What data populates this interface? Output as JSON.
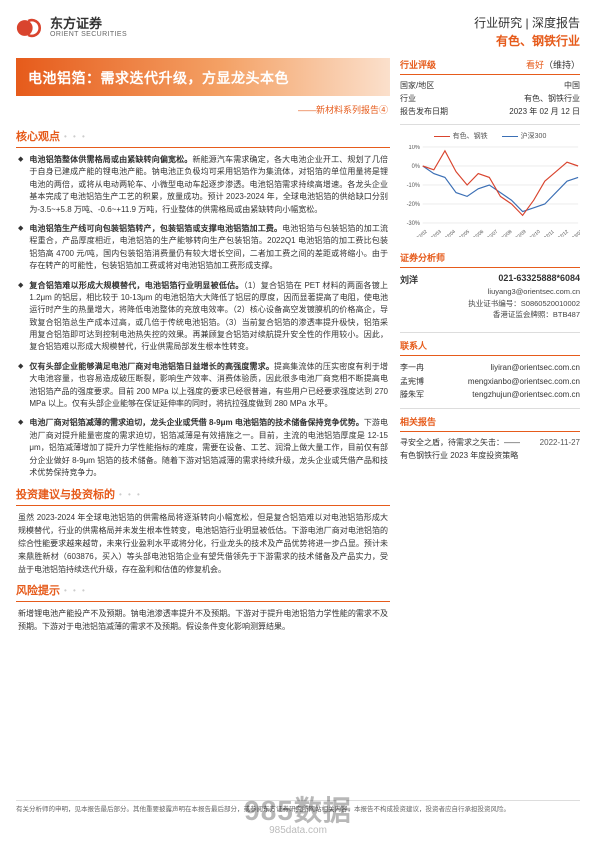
{
  "brand": {
    "cn": "东方证券",
    "en": "ORIENT SECURITIES"
  },
  "header": {
    "line1_a": "行业研究",
    "line1_sep": " | ",
    "line1_b": "深度报告",
    "line2": "有色、钢铁行业"
  },
  "title": {
    "main": "电池铝箔：需求迭代升级，方显龙头本色",
    "sub": "——新材料系列报告④"
  },
  "sections": {
    "core": "核心观点",
    "advice": "投资建议与投资标的",
    "risk": "风险提示"
  },
  "core_bullets": [
    {
      "lead": "电池铝箔整体供需格局或由紧缺转向偏宽松。",
      "body": "新能源汽车需求确定，各大电池企业开工、规划了几倍于自身已建成产能的锂电池产能。钠电池正负极均可采用铝箔作为集流体，对铝箔的单位用量将是锂电池的两倍，或将从电动两轮车、小微型电动车起逐步渗透。电池铝箔需求持续高增速。各龙头企业基本完成了电池铝箔生产工艺的积累，放量成功。预计 2023-2024 年，全球电池铝箔的供给缺口分别为-3.5~+5.8 万吨、-0.6~+11.9 万吨，行业整体的供需格局或由紧缺转向小幅宽松。"
    },
    {
      "lead": "电池铝箔生产线可向包装铝箔转产，包装铝箔或支撑电池铝箔加工费。",
      "body": "电池铝箔与包装铝箔的加工流程重合，产品厚度相近，电池铝箔的生产能够转向生产包装铝箔。2022Q1 电池铝箔的加工费比包装铝箔高 4700 元/吨，国内包装铝箔消费量仍有较大增长空间，二者加工费之间的差距或将缩小。由于存在转产的可能性，包装铝箔加工费或将对电池铝箔加工费形成支撑。"
    },
    {
      "lead": "复合铝箔难以形成大规模替代，电池铝箔行业明显被低估。",
      "body": "（1）复合铝箔在 PET 材料的两面各镀上 1.2μm 的铝层，相比较于 10-13μm 的电池铝箔大大降低了铝层的厚度，因而显著提高了电阻，使电池运行时产生的热量增大，将降低电池整体的充放电效率。（2）核心设备高空发镀膜机的价格高企，导致复合铝箔总生产成本过高，或几倍于传统电池铝箔。（3）当前复合铝箔的渗透率提升极快，铝箔采用复合铝箔即可达到控制电池热失控的效果。再兼顾复合铝箔对续航提升安全性的作用较小。因此，复合铝箔难以形成大规模替代，行业供需局部发生根本性转变。"
    },
    {
      "lead": "仅有头部企业能够满足电池厂商对电池铝箔日益增长的高强度需求。",
      "body": "提高集流体的压实密度有利于增大电池容量，也容易造成破压断裂，影响生产效率、消费体验质，因此很多电池厂商竞相不断提高电池铝箔产品的强度要求。目前 200 MPa 以上强度的要求已经很普遍，有些用户已经要求强度达到 270 MPa 以上。仅有头部企业能够在保证延伸率的同时，将抗拉强度做到 280 MPa 水平。"
    },
    {
      "lead": "电池厂商对铝箔减薄的需求迫切，龙头企业或凭借 8-9μm 电池铝箔的技术储备保持竞争优势。",
      "body": "下游电池厂商对提升能量密度的需求迫切，铝箔减薄是有效措施之一。目前，主流的电池铝箔厚度是 12-15 μm，铝箔减薄增加了提升力学性能指标的难度，需要在设备、工艺、润滑上做大量工作，目前仅有部分企业做好 8-9μm 铝箔的技术储备。随着下游对铝箔减薄的需求持续升级，龙头企业或凭借产品和技术优势保持竞争力。"
    }
  ],
  "advice_text": "虽然 2023-2024 年全球电池铝箔的供需格局将逐渐转向小幅宽松，但是复合铝箔难以对电池铝箔形成大规模替代，行业的供需格局并未发生根本性转变，电池铝箔行业明显被低估。下游电池厂商对电池铝箔的综合性能要求越来越苛，未来行业盈利水平或将分化，行业龙头的技术及产品优势将进一步凸显。预计未来鼎胜新材（603876，买入）等头部电池铝箔企业有望凭借领先于下游需求的技术储备及产品实力，受益于电池铝箔持续迭代升级，存在盈利和估值的修复机会。",
  "risk_text": "新增锂电池产能投产不及预期。钠电池渗透率提升不及预期。下游对于提升电池铝箔力学性能的需求不及预期。下游对于电池铝箔减薄的需求不及预期。假设条件变化影响测算结果。",
  "side": {
    "rating_sec": "行业评级",
    "rating_value": "看好",
    "rating_suffix": "（维持）",
    "rows": [
      {
        "k": "国家/地区",
        "v": "中国"
      },
      {
        "k": "行业",
        "v": "有色、钢铁行业"
      },
      {
        "k": "报告发布日期",
        "v": "2023 年 02 月 12 日"
      }
    ],
    "analysts_title": "证券分析师",
    "analyst": {
      "name": "刘洋",
      "phone": "021-63325888*6084",
      "email": "liuyang3@orientsec.com.cn",
      "cert_label": "执业证书编号：",
      "cert": "S0860520010002",
      "qual_label": "香港证监会牌照：",
      "qual": "BTB487"
    },
    "contact_title": "联系人",
    "contacts": [
      {
        "name": "李一冉",
        "email": "liyiran@orientsec.com.cn"
      },
      {
        "name": "孟宪博",
        "email": "mengxianbo@orientsec.com.cn"
      },
      {
        "name": "滕朱军",
        "email": "tengzhujun@orientsec.com.cn"
      }
    ],
    "related_title": "相关报告",
    "related": [
      {
        "t": "寻安全之盾，待需求之矢击：——",
        "d": "2022-11-27"
      },
      {
        "t": "有色钢铁行业 2023 年度投资策略",
        "d": ""
      }
    ]
  },
  "chart": {
    "legend": [
      {
        "label": "有色、钢铁",
        "color": "#d9442e"
      },
      {
        "label": "沪深300",
        "color": "#3b6fb5"
      }
    ],
    "ylim": [
      -30,
      10
    ],
    "yticks": [
      10,
      0,
      -10,
      -20,
      -30
    ],
    "xticks": [
      "22/02",
      "22/03",
      "22/04",
      "22/05",
      "22/06",
      "22/07",
      "22/08",
      "22/09",
      "22/10",
      "22/11",
      "22/12",
      "23/01"
    ],
    "series_red": [
      0,
      -2,
      8,
      -3,
      -10,
      -4,
      -6,
      -16,
      -20,
      -26,
      -18,
      -8,
      -3,
      2,
      0
    ],
    "series_blue": [
      0,
      -4,
      -6,
      -14,
      -16,
      -12,
      -10,
      -14,
      -18,
      -24,
      -22,
      -20,
      -14,
      -8,
      -6
    ],
    "colors": {
      "red": "#d9442e",
      "blue": "#3b6fb5",
      "grid": "#d7d7d7",
      "axis": "#999"
    }
  },
  "footer": "有关分析师的申明，见本报告最后部分。其他重要披露声明在本报告最后部分，或参阅东方证券研究所网站相关内容，本报告不构成投资建议，投资者应自行承担投资风险。",
  "watermark": {
    "line1": "985数据",
    "line2": "985data.com"
  }
}
